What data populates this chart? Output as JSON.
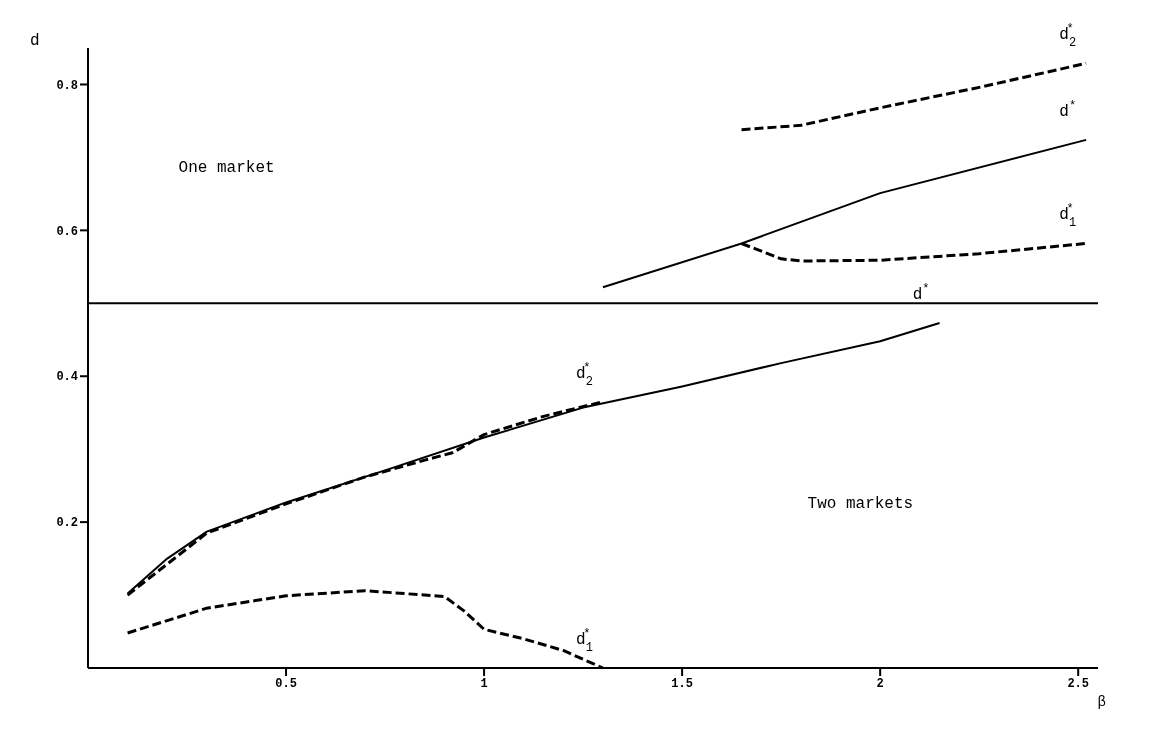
{
  "chart_data": {
    "type": "line",
    "xlabel": "β",
    "ylabel": "d",
    "xlim": [
      0,
      2.55
    ],
    "ylim": [
      0,
      0.85
    ],
    "xticks": [
      0.5,
      1,
      1.5,
      2,
      2.5
    ],
    "yticks": [
      0.2,
      0.4,
      0.6,
      0.8
    ],
    "grid": false,
    "legend": false,
    "marker": "none",
    "ref_lines": [
      {
        "axis": "y",
        "value": 0.5,
        "label": null,
        "color": "#000000",
        "line_style": "solid"
      }
    ],
    "annotations": [
      "One market",
      "Two markets"
    ],
    "series": [
      {
        "name": "d$^{*}$",
        "color": "#000000",
        "line_style": "solid",
        "x": [
          0.1,
          0.2,
          0.3,
          0.5,
          0.75,
          1,
          1.25,
          1.5,
          1.75,
          2,
          2.15
        ],
        "values": [
          0.102,
          0.15,
          0.187,
          0.227,
          0.271,
          0.316,
          0.357,
          0.386,
          0.418,
          0.448,
          0.473
        ]
      },
      {
        "name": "d$_{2}$$^{*}$",
        "color": "#000000",
        "line_style": "dashed",
        "x": [
          0.1,
          0.3,
          0.5,
          0.7,
          0.85,
          0.92,
          1,
          1.15,
          1.3
        ],
        "values": [
          0.1,
          0.185,
          0.225,
          0.262,
          0.285,
          0.295,
          0.32,
          0.345,
          0.365
        ]
      },
      {
        "name": "d$_{1}$$^{*}$",
        "color": "#000000",
        "line_style": "dashed",
        "x": [
          0.1,
          0.3,
          0.5,
          0.7,
          0.9,
          0.95,
          1,
          1.1,
          1.2,
          1.3
        ],
        "values": [
          0.048,
          0.082,
          0.099,
          0.106,
          0.098,
          0.078,
          0.053,
          0.04,
          0.024,
          0
        ]
      },
      {
        "name": "d$^{*}$",
        "color": "#000000",
        "line_style": "solid",
        "x": [
          1.3,
          1.65,
          2,
          2.52
        ],
        "values": [
          0.522,
          0.582,
          0.651,
          0.724
        ]
      },
      {
        "name": "d$_{2}$$^{*}$",
        "color": "#000000",
        "line_style": "dashed",
        "x": [
          1.65,
          1.8,
          2,
          2.25,
          2.52
        ],
        "values": [
          0.738,
          0.744,
          0.768,
          0.796,
          0.829
        ]
      },
      {
        "name": "d$_{1}$$^{*}$",
        "color": "#000000",
        "line_style": "dashed",
        "x": [
          1.65,
          1.75,
          1.8,
          2,
          2.25,
          2.52
        ],
        "values": [
          0.582,
          0.561,
          0.558,
          0.559,
          0.568,
          0.582
        ]
      }
    ]
  }
}
